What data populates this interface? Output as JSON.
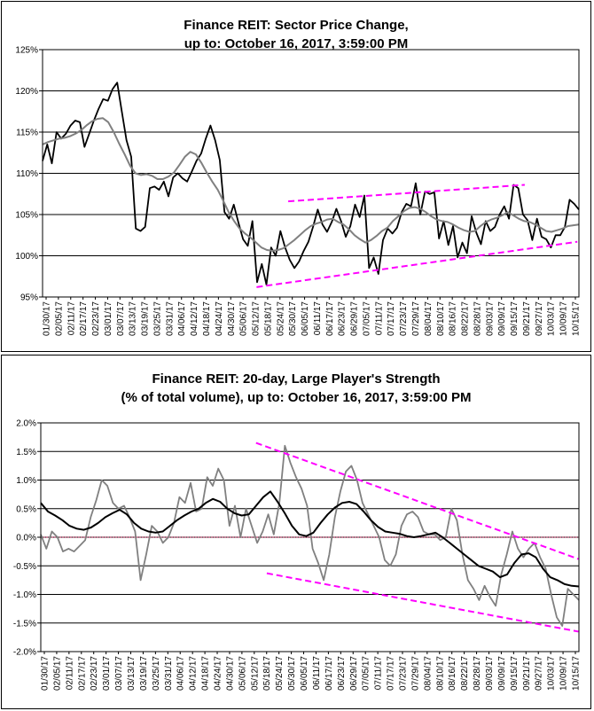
{
  "chart_data": [
    {
      "type": "line",
      "title_line1": "Finance REIT: Sector Price Change,",
      "title_line2": "up to: October 16, 2017, 3:59:00 PM",
      "ylim": [
        95,
        125
      ],
      "y_ticks": [
        "95%",
        "100%",
        "105%",
        "110%",
        "115%",
        "120%",
        "125%"
      ],
      "x_ticks": [
        "01/30/17",
        "02/05/17",
        "02/11/17",
        "02/17/17",
        "02/23/17",
        "03/01/17",
        "03/07/17",
        "03/13/17",
        "03/19/17",
        "03/25/17",
        "03/31/17",
        "04/06/17",
        "04/12/17",
        "04/18/17",
        "04/24/17",
        "04/30/17",
        "05/06/17",
        "05/12/17",
        "05/18/17",
        "05/24/17",
        "05/30/17",
        "06/05/17",
        "06/11/17",
        "06/17/17",
        "06/23/17",
        "06/29/17",
        "07/05/17",
        "07/11/17",
        "07/17/17",
        "07/23/17",
        "07/29/17",
        "08/04/17",
        "08/10/17",
        "08/16/17",
        "08/22/17",
        "08/28/17",
        "09/03/17",
        "09/09/17",
        "09/15/17",
        "09/21/17",
        "09/27/17",
        "10/03/17",
        "10/09/17",
        "10/15/17"
      ],
      "colors": {
        "price": "#000000",
        "average": "#808080",
        "trend": "#ff00ff"
      },
      "series": [
        {
          "key": "price",
          "values": [
            111.5,
            113.5,
            111.2,
            115.0,
            114.2,
            114.8,
            115.8,
            116.4,
            116.2,
            113.2,
            114.8,
            116.4,
            117.8,
            119.0,
            118.8,
            120.2,
            121.0,
            117.5,
            114.0,
            112.0,
            103.3,
            103.0,
            103.5,
            108.2,
            108.4,
            108.0,
            109.0,
            107.2,
            109.5,
            110.0,
            109.4,
            109.0,
            110.2,
            111.5,
            112.4,
            114.2,
            115.8,
            114.0,
            111.6,
            105.3,
            104.5,
            106.2,
            104.0,
            102.0,
            101.2,
            104.2,
            96.8,
            99.0,
            96.5,
            101.0,
            100.0,
            103.0,
            101.0,
            99.5,
            98.5,
            99.3,
            100.6,
            101.7,
            103.5,
            105.6,
            103.8,
            102.9,
            104.1,
            105.7,
            104.2,
            102.3,
            103.6,
            106.2,
            104.7,
            107.3,
            98.5,
            99.8,
            97.8,
            101.9,
            103.3,
            102.7,
            103.4,
            105.3,
            106.3,
            106.0,
            108.8,
            105.0,
            107.8,
            107.5,
            107.7,
            102.1,
            104.2,
            101.3,
            103.6,
            99.8,
            101.6,
            100.3,
            104.8,
            102.8,
            101.4,
            104.2,
            103.0,
            103.5,
            105.0,
            106.0,
            104.5,
            108.6,
            108.2,
            105.0,
            104.3,
            101.9,
            104.5,
            102.3,
            102.0,
            101.0,
            102.5,
            102.5,
            103.5,
            106.8,
            106.3,
            105.6
          ]
        },
        {
          "key": "average",
          "values": [
            113.5,
            113.8,
            114.0,
            114.2,
            114.3,
            114.5,
            114.8,
            115.2,
            115.8,
            116.3,
            116.6,
            116.7,
            116.2,
            115.0,
            113.6,
            112.3,
            110.9,
            110.0,
            109.8,
            109.9,
            109.7,
            109.3,
            109.3,
            109.6,
            110.1,
            111.0,
            112.0,
            112.6,
            112.3,
            111.3,
            110.1,
            109.0,
            108.0,
            106.7,
            105.3,
            104.2,
            103.3,
            102.7,
            102.2,
            101.6,
            101.0,
            100.7,
            100.6,
            100.7,
            100.9,
            101.4,
            101.9,
            102.5,
            103.1,
            103.6,
            103.9,
            104.1,
            104.4,
            104.5,
            104.1,
            103.8,
            103.2,
            102.5,
            102.0,
            101.6,
            101.9,
            102.4,
            103.0,
            103.4,
            104.2,
            104.8,
            105.4,
            105.8,
            105.9,
            105.7,
            105.3,
            104.8,
            104.4,
            104.2,
            104.1,
            103.8,
            103.4,
            103.1,
            102.9,
            103.0,
            103.6,
            104.1,
            104.4,
            104.6,
            104.9,
            105.3,
            104.9,
            104.5,
            104.2,
            104.1,
            103.8,
            103.4,
            103.0,
            102.9,
            103.1,
            103.3,
            103.6,
            103.7,
            103.8
          ]
        }
      ],
      "trendlines": [
        {
          "from": [
            0.458,
            106.6
          ],
          "to": [
            0.899,
            108.6
          ]
        },
        {
          "from": [
            0.399,
            96.2
          ],
          "to": [
            0.997,
            101.7
          ]
        }
      ]
    },
    {
      "type": "line",
      "title_line1": "Finance REIT: 20-day, Large Player's Strength",
      "title_line2": "(% of total volume), up to: October 16, 2017, 3:59:00 PM",
      "ylim": [
        -2.0,
        2.0
      ],
      "y_ticks": [
        "-2.0%",
        "-1.5%",
        "-1.0%",
        "-0.5%",
        "0.0%",
        "0.5%",
        "1.0%",
        "1.5%",
        "2.0%"
      ],
      "x_ticks": [
        "01/30/17",
        "02/05/17",
        "02/11/17",
        "02/17/17",
        "02/23/17",
        "03/01/17",
        "03/07/17",
        "03/13/17",
        "03/19/17",
        "03/25/17",
        "03/31/17",
        "04/06/17",
        "04/12/17",
        "04/18/17",
        "04/24/17",
        "04/30/17",
        "05/06/17",
        "05/12/17",
        "05/18/17",
        "05/24/17",
        "05/30/17",
        "06/05/17",
        "06/11/17",
        "06/17/17",
        "06/23/17",
        "06/29/17",
        "07/05/17",
        "07/11/17",
        "07/17/17",
        "07/23/17",
        "07/29/17",
        "08/04/17",
        "08/10/17",
        "08/16/17",
        "08/22/17",
        "08/28/17",
        "09/03/17",
        "09/09/17",
        "09/15/17",
        "09/21/17",
        "09/27/17",
        "10/03/17",
        "10/09/17",
        "10/15/17"
      ],
      "colors": {
        "strength": "#808080",
        "average": "#000000",
        "zero": "#c06080",
        "trend": "#ff00ff"
      },
      "series": [
        {
          "key": "strength",
          "values": [
            0.05,
            -0.2,
            0.1,
            0.0,
            -0.25,
            -0.2,
            -0.25,
            -0.15,
            -0.05,
            0.35,
            0.65,
            1.0,
            0.9,
            0.6,
            0.5,
            0.55,
            0.35,
            0.1,
            -0.75,
            -0.3,
            0.2,
            0.1,
            -0.1,
            0.0,
            0.25,
            0.7,
            0.6,
            0.95,
            0.45,
            0.5,
            1.05,
            0.9,
            1.2,
            1.0,
            0.2,
            0.55,
            0.0,
            0.5,
            0.2,
            -0.1,
            0.1,
            0.4,
            0.05,
            0.6,
            1.6,
            1.3,
            1.05,
            0.85,
            0.55,
            -0.2,
            -0.45,
            -0.75,
            -0.3,
            0.35,
            0.8,
            1.15,
            1.25,
            1.0,
            0.6,
            0.4,
            0.2,
            0.0,
            -0.4,
            -0.5,
            -0.3,
            0.2,
            0.4,
            0.45,
            0.35,
            0.1,
            0.05,
            0.05,
            -0.05,
            0.0,
            0.5,
            0.3,
            -0.3,
            -0.75,
            -0.9,
            -1.1,
            -0.85,
            -1.05,
            -1.2,
            -0.65,
            -0.3,
            0.1,
            -0.2,
            -0.35,
            -0.2,
            -0.1,
            -0.35,
            -0.55,
            -1.0,
            -1.4,
            -1.55,
            -0.9,
            -1.0,
            -1.1
          ]
        },
        {
          "key": "average",
          "values": [
            0.6,
            0.45,
            0.38,
            0.3,
            0.2,
            0.15,
            0.13,
            0.17,
            0.25,
            0.35,
            0.42,
            0.48,
            0.4,
            0.25,
            0.15,
            0.1,
            0.08,
            0.1,
            0.2,
            0.3,
            0.38,
            0.45,
            0.5,
            0.6,
            0.67,
            0.62,
            0.5,
            0.42,
            0.38,
            0.4,
            0.55,
            0.7,
            0.8,
            0.62,
            0.42,
            0.2,
            0.05,
            0.02,
            0.08,
            0.25,
            0.4,
            0.52,
            0.6,
            0.62,
            0.58,
            0.45,
            0.3,
            0.18,
            0.1,
            0.08,
            0.06,
            0.02,
            0.0,
            0.02,
            0.05,
            0.08,
            0.0,
            -0.1,
            -0.2,
            -0.3,
            -0.4,
            -0.5,
            -0.55,
            -0.6,
            -0.7,
            -0.65,
            -0.45,
            -0.3,
            -0.28,
            -0.35,
            -0.55,
            -0.7,
            -0.75,
            -0.82,
            -0.85,
            -0.86
          ]
        }
      ],
      "trendlines": [
        {
          "from": [
            0.4,
            1.65
          ],
          "to": [
            0.999,
            -0.38
          ]
        },
        {
          "from": [
            0.42,
            -0.63
          ],
          "to": [
            0.999,
            -1.65
          ]
        }
      ]
    }
  ]
}
